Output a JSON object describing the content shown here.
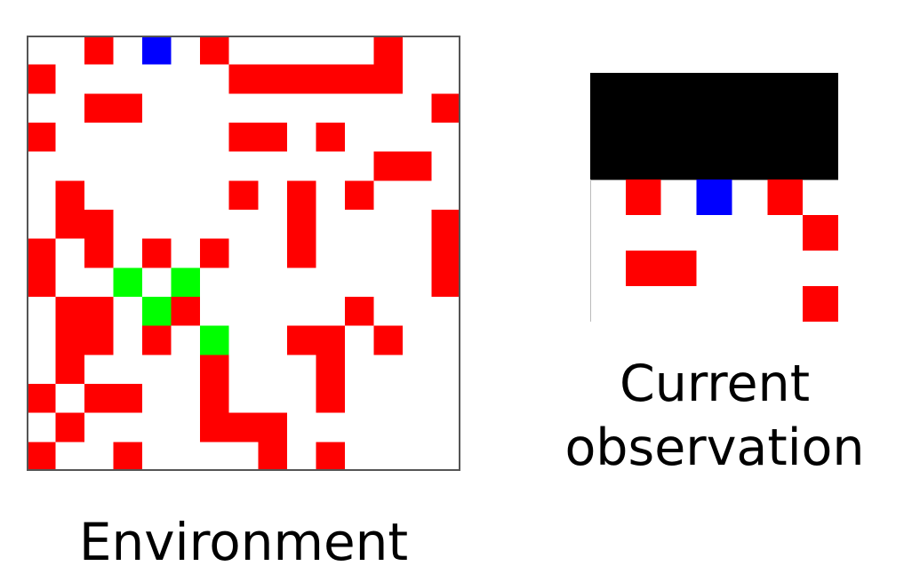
{
  "colors": {
    "background": "#ffffff",
    "frame": "#555555",
    "obstacle": "#ff0000",
    "agent": "#0000ff",
    "goal": "#00ff00",
    "unobserved": "#000000"
  },
  "environment": {
    "caption": "Environment",
    "rows": 15,
    "cols": 15,
    "cells": [
      {
        "row": 0,
        "col": 2,
        "type": "obstacle"
      },
      {
        "row": 0,
        "col": 4,
        "type": "agent"
      },
      {
        "row": 0,
        "col": 6,
        "type": "obstacle"
      },
      {
        "row": 0,
        "col": 12,
        "type": "obstacle"
      },
      {
        "row": 1,
        "col": 0,
        "type": "obstacle"
      },
      {
        "row": 1,
        "col": 7,
        "type": "obstacle"
      },
      {
        "row": 1,
        "col": 8,
        "type": "obstacle"
      },
      {
        "row": 1,
        "col": 9,
        "type": "obstacle"
      },
      {
        "row": 1,
        "col": 10,
        "type": "obstacle"
      },
      {
        "row": 1,
        "col": 11,
        "type": "obstacle"
      },
      {
        "row": 1,
        "col": 12,
        "type": "obstacle"
      },
      {
        "row": 2,
        "col": 2,
        "type": "obstacle"
      },
      {
        "row": 2,
        "col": 3,
        "type": "obstacle"
      },
      {
        "row": 2,
        "col": 14,
        "type": "obstacle"
      },
      {
        "row": 3,
        "col": 0,
        "type": "obstacle"
      },
      {
        "row": 3,
        "col": 7,
        "type": "obstacle"
      },
      {
        "row": 3,
        "col": 8,
        "type": "obstacle"
      },
      {
        "row": 3,
        "col": 10,
        "type": "obstacle"
      },
      {
        "row": 4,
        "col": 12,
        "type": "obstacle"
      },
      {
        "row": 4,
        "col": 13,
        "type": "obstacle"
      },
      {
        "row": 5,
        "col": 1,
        "type": "obstacle"
      },
      {
        "row": 5,
        "col": 7,
        "type": "obstacle"
      },
      {
        "row": 5,
        "col": 9,
        "type": "obstacle"
      },
      {
        "row": 5,
        "col": 11,
        "type": "obstacle"
      },
      {
        "row": 6,
        "col": 1,
        "type": "obstacle"
      },
      {
        "row": 6,
        "col": 2,
        "type": "obstacle"
      },
      {
        "row": 6,
        "col": 9,
        "type": "obstacle"
      },
      {
        "row": 6,
        "col": 14,
        "type": "obstacle"
      },
      {
        "row": 7,
        "col": 0,
        "type": "obstacle"
      },
      {
        "row": 7,
        "col": 2,
        "type": "obstacle"
      },
      {
        "row": 7,
        "col": 4,
        "type": "obstacle"
      },
      {
        "row": 7,
        "col": 6,
        "type": "obstacle"
      },
      {
        "row": 7,
        "col": 9,
        "type": "obstacle"
      },
      {
        "row": 7,
        "col": 14,
        "type": "obstacle"
      },
      {
        "row": 8,
        "col": 0,
        "type": "obstacle"
      },
      {
        "row": 8,
        "col": 3,
        "type": "goal"
      },
      {
        "row": 8,
        "col": 5,
        "type": "goal"
      },
      {
        "row": 8,
        "col": 14,
        "type": "obstacle"
      },
      {
        "row": 9,
        "col": 1,
        "type": "obstacle"
      },
      {
        "row": 9,
        "col": 2,
        "type": "obstacle"
      },
      {
        "row": 9,
        "col": 4,
        "type": "goal"
      },
      {
        "row": 9,
        "col": 5,
        "type": "obstacle"
      },
      {
        "row": 9,
        "col": 11,
        "type": "obstacle"
      },
      {
        "row": 10,
        "col": 1,
        "type": "obstacle"
      },
      {
        "row": 10,
        "col": 2,
        "type": "obstacle"
      },
      {
        "row": 10,
        "col": 4,
        "type": "obstacle"
      },
      {
        "row": 10,
        "col": 6,
        "type": "goal"
      },
      {
        "row": 10,
        "col": 9,
        "type": "obstacle"
      },
      {
        "row": 10,
        "col": 10,
        "type": "obstacle"
      },
      {
        "row": 10,
        "col": 12,
        "type": "obstacle"
      },
      {
        "row": 11,
        "col": 1,
        "type": "obstacle"
      },
      {
        "row": 11,
        "col": 6,
        "type": "obstacle"
      },
      {
        "row": 11,
        "col": 10,
        "type": "obstacle"
      },
      {
        "row": 12,
        "col": 0,
        "type": "obstacle"
      },
      {
        "row": 12,
        "col": 2,
        "type": "obstacle"
      },
      {
        "row": 12,
        "col": 3,
        "type": "obstacle"
      },
      {
        "row": 12,
        "col": 6,
        "type": "obstacle"
      },
      {
        "row": 12,
        "col": 10,
        "type": "obstacle"
      },
      {
        "row": 13,
        "col": 1,
        "type": "obstacle"
      },
      {
        "row": 13,
        "col": 6,
        "type": "obstacle"
      },
      {
        "row": 13,
        "col": 7,
        "type": "obstacle"
      },
      {
        "row": 13,
        "col": 8,
        "type": "obstacle"
      },
      {
        "row": 14,
        "col": 0,
        "type": "obstacle"
      },
      {
        "row": 14,
        "col": 3,
        "type": "obstacle"
      },
      {
        "row": 14,
        "col": 8,
        "type": "obstacle"
      },
      {
        "row": 14,
        "col": 10,
        "type": "obstacle"
      }
    ]
  },
  "observation": {
    "caption_line1": "Current",
    "caption_line2": "observation",
    "rows": 7,
    "cols": 7,
    "unobserved_rows": 3,
    "cells": [
      {
        "row": 3,
        "col": 1,
        "type": "obstacle"
      },
      {
        "row": 3,
        "col": 3,
        "type": "agent"
      },
      {
        "row": 3,
        "col": 5,
        "type": "obstacle"
      },
      {
        "row": 4,
        "col": 6,
        "type": "obstacle"
      },
      {
        "row": 5,
        "col": 1,
        "type": "obstacle"
      },
      {
        "row": 5,
        "col": 2,
        "type": "obstacle"
      },
      {
        "row": 6,
        "col": 6,
        "type": "obstacle"
      }
    ]
  }
}
